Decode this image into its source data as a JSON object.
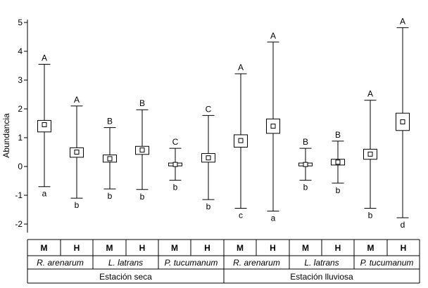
{
  "chart_data": {
    "type": "box",
    "ylabel": "Abundancia",
    "ylim": [
      -2.3,
      5.1
    ],
    "yticks": [
      "5",
      "4",
      "3",
      "2",
      "1",
      "0",
      "-1",
      "-2"
    ],
    "ytick_values": [
      5,
      4,
      3,
      2,
      1,
      0,
      -1,
      -2
    ],
    "sex_labels": [
      "M",
      "H",
      "M",
      "H",
      "M",
      "H",
      "M",
      "H",
      "M",
      "H",
      "M",
      "H"
    ],
    "species": [
      "R. arenarum",
      "L. latrans",
      "P. tucumanum",
      "R. arenarum",
      "L. latrans",
      "P. tucumanum"
    ],
    "seasons": [
      "Estación seca",
      "Estación lluviosa"
    ],
    "boxes": [
      {
        "season": "Estación seca",
        "species": "R. arenarum",
        "sex": "M",
        "mean": 1.45,
        "box_low": 1.2,
        "box_high": 1.6,
        "whisker_low": -0.7,
        "whisker_high": 3.55,
        "top_letter": "A",
        "bottom_letter": "a"
      },
      {
        "season": "Estación seca",
        "species": "R. arenarum",
        "sex": "H",
        "mean": 0.5,
        "box_low": 0.32,
        "box_high": 0.65,
        "whisker_low": -1.1,
        "whisker_high": 2.1,
        "top_letter": "A",
        "bottom_letter": "b"
      },
      {
        "season": "Estación seca",
        "species": "L. latrans",
        "sex": "M",
        "mean": 0.27,
        "box_low": 0.15,
        "box_high": 0.4,
        "whisker_low": -0.78,
        "whisker_high": 1.35,
        "top_letter": "B",
        "bottom_letter": "b"
      },
      {
        "season": "Estación seca",
        "species": "L. latrans",
        "sex": "H",
        "mean": 0.57,
        "box_low": 0.42,
        "box_high": 0.7,
        "whisker_low": -0.8,
        "whisker_high": 1.97,
        "top_letter": "B",
        "bottom_letter": "b"
      },
      {
        "season": "Estación seca",
        "species": "P. tucumanum",
        "sex": "M",
        "mean": 0.07,
        "box_low": 0.02,
        "box_high": 0.12,
        "whisker_low": -0.48,
        "whisker_high": 0.63,
        "top_letter": "C",
        "bottom_letter": "b"
      },
      {
        "season": "Estación seca",
        "species": "P. tucumanum",
        "sex": "H",
        "mean": 0.3,
        "box_low": 0.15,
        "box_high": 0.45,
        "whisker_low": -1.15,
        "whisker_high": 1.77,
        "top_letter": "C",
        "bottom_letter": "b"
      },
      {
        "season": "Estación lluviosa",
        "species": "R. arenarum",
        "sex": "M",
        "mean": 0.9,
        "box_low": 0.67,
        "box_high": 1.1,
        "whisker_low": -1.45,
        "whisker_high": 3.22,
        "top_letter": "A",
        "bottom_letter": "c"
      },
      {
        "season": "Estación lluviosa",
        "species": "R. arenarum",
        "sex": "H",
        "mean": 1.4,
        "box_low": 1.15,
        "box_high": 1.65,
        "whisker_low": -1.55,
        "whisker_high": 4.32,
        "top_letter": "A",
        "bottom_letter": "a"
      },
      {
        "season": "Estación lluviosa",
        "species": "L. latrans",
        "sex": "M",
        "mean": 0.07,
        "box_low": 0.02,
        "box_high": 0.12,
        "whisker_low": -0.48,
        "whisker_high": 0.63,
        "top_letter": "B",
        "bottom_letter": "b"
      },
      {
        "season": "Estación lluviosa",
        "species": "L. latrans",
        "sex": "H",
        "mean": 0.15,
        "box_low": 0.05,
        "box_high": 0.25,
        "whisker_low": -0.58,
        "whisker_high": 0.88,
        "top_letter": "B",
        "bottom_letter": "b"
      },
      {
        "season": "Estación lluviosa",
        "species": "P. tucumanum",
        "sex": "M",
        "mean": 0.43,
        "box_low": 0.25,
        "box_high": 0.6,
        "whisker_low": -1.45,
        "whisker_high": 2.3,
        "top_letter": "A",
        "bottom_letter": "b"
      },
      {
        "season": "Estación lluviosa",
        "species": "P. tucumanum",
        "sex": "H",
        "mean": 1.55,
        "box_low": 1.25,
        "box_high": 1.85,
        "whisker_low": -1.78,
        "whisker_high": 4.82,
        "top_letter": "A",
        "bottom_letter": "d"
      }
    ],
    "grid": false,
    "legend": "none"
  }
}
